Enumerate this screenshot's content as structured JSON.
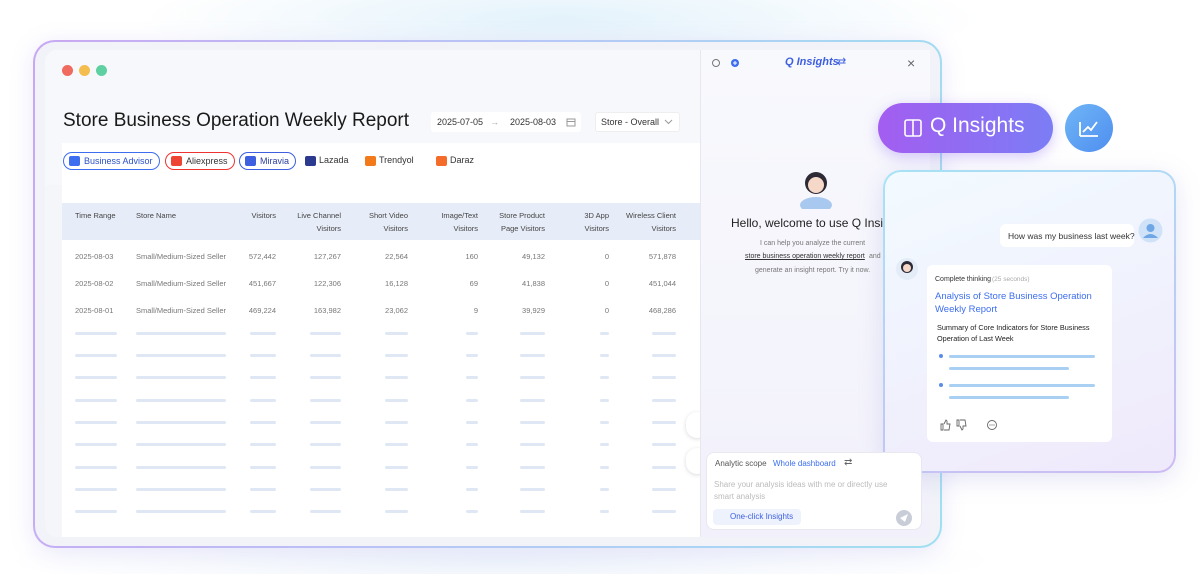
{
  "report": {
    "title": "Store Business Operation Weekly Report",
    "date_start": "2025-07-05",
    "date_arrow": "→",
    "date_end": "2025-08-03",
    "store_select": "Store - Overall",
    "platforms": [
      "Business Advisor",
      "Aliexpress",
      "Miravia",
      "Lazada",
      "Trendyol",
      "Daraz"
    ],
    "table": {
      "columns": [
        [
          "Time Range"
        ],
        [
          "Store Name"
        ],
        [
          "Visitors"
        ],
        [
          "Live Channel",
          "Visitors"
        ],
        [
          "Short Video",
          "Visitors"
        ],
        [
          "Image/Text",
          "Visitors"
        ],
        [
          "Store Product",
          "Page Visitors"
        ],
        [
          "3D App",
          "Visitors"
        ],
        [
          "Wireless Client",
          "Visitors"
        ]
      ],
      "rows": [
        [
          "2025-08-03",
          "Small/Medium-Sized Seller",
          "572,442",
          "127,267",
          "22,564",
          "160",
          "49,132",
          "0",
          "571,878"
        ],
        [
          "2025-08-02",
          "Small/Medium-Sized Seller",
          "451,667",
          "122,306",
          "16,128",
          "69",
          "41,838",
          "0",
          "451,044"
        ],
        [
          "2025-08-01",
          "Small/Medium-Sized Seller",
          "469,224",
          "163,982",
          "23,062",
          "9",
          "39,929",
          "0",
          "468,286"
        ]
      ]
    }
  },
  "assistant": {
    "brand": "Q Insights",
    "brand_icon": "⇄",
    "close": "×",
    "greeting": "Hello, welcome to use Q Insights",
    "intro_1": "I can help you analyze the current",
    "intro_link": "store business operation weekly report",
    "intro_2": "and",
    "intro_3": "generate an insight report. Try it now.",
    "scope_label": "Analytic scope",
    "scope_value": "Whole dashboard",
    "placeholder": "Share your analysis ideas with me or directly use smart analysis",
    "button": "One-click Insights"
  },
  "badge": {
    "label": "Q Insights"
  },
  "chat": {
    "question": "How was my business last week?",
    "status": "Complete thinking",
    "duration": "(25 seconds)",
    "report_title": "Analysis of Store Business Operation Weekly Report",
    "summary": "Summary of Core Indicators for Store Business Operation of Last Week"
  }
}
